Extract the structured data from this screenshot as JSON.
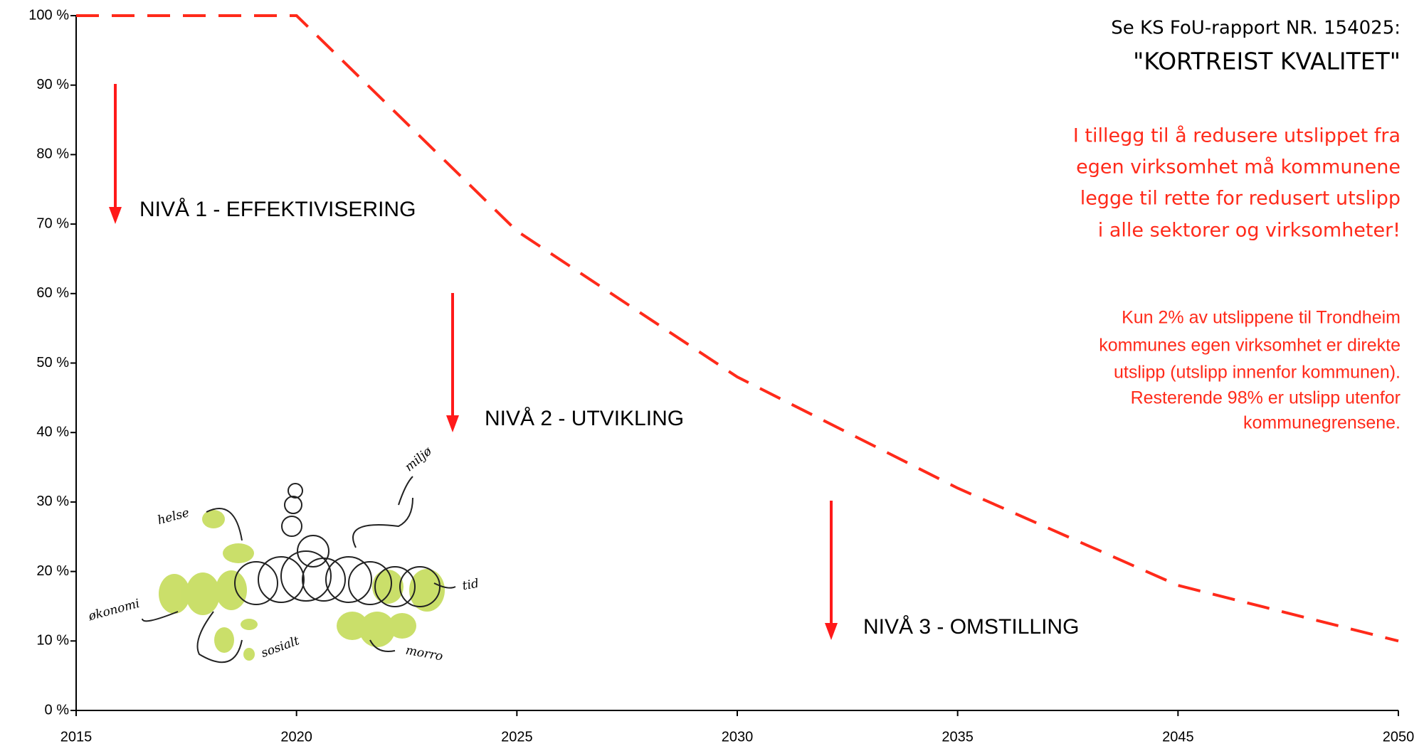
{
  "chart_data": {
    "type": "line",
    "categories": [
      "2015",
      "2020",
      "2025",
      "2030",
      "2035",
      "2045",
      "2050"
    ],
    "values": [
      100,
      100,
      69,
      48,
      32,
      18,
      10
    ],
    "color": "#ff2a1a",
    "ylim": [
      0,
      100
    ],
    "yticks": [
      {
        "value": 0,
        "label": "0 %"
      },
      {
        "value": 10,
        "label": "10 %"
      },
      {
        "value": 20,
        "label": "20 %"
      },
      {
        "value": 30,
        "label": "30 %"
      },
      {
        "value": 40,
        "label": "40 %"
      },
      {
        "value": 50,
        "label": "50 %"
      },
      {
        "value": 60,
        "label": "60 %"
      },
      {
        "value": 70,
        "label": "70 %"
      },
      {
        "value": 80,
        "label": "80 %"
      },
      {
        "value": 90,
        "label": "90 %"
      },
      {
        "value": 100,
        "label": "100 %"
      }
    ],
    "dashed": true,
    "levels": [
      "NIVÅ 1 - EFFEKTIVISERING",
      "NIVÅ 2 - UTVIKLING",
      "NIVÅ 3 - OMSTILLING"
    ],
    "reference": [
      "Se KS FoU-rapport NR. 154025:",
      "\"KORTREIST KVALITET\""
    ],
    "note_1": [
      "I tillegg til å redusere utslippet fra",
      "egen virksomhet må kommunene",
      "legge til rette for redusert utslipp",
      "i alle sektorer og virksomheter!"
    ],
    "note_2": [
      "Kun 2% av  utslippene til Trondheim",
      "kommunes egen virksomhet er direkte",
      "utslipp (utslipp innenfor kommunen).",
      "Resterende 98% er utslipp utenfor",
      "kommunegrensene."
    ],
    "sketch_labels": [
      "helse",
      "miljø",
      "tid",
      "morro",
      "sosialt",
      "økonomi"
    ]
  }
}
